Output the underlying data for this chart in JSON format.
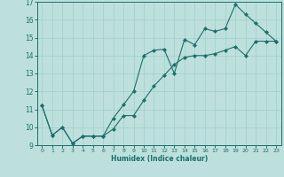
{
  "xlabel": "Humidex (Indice chaleur)",
  "xlim": [
    -0.5,
    23.5
  ],
  "ylim": [
    9,
    17
  ],
  "xticks": [
    0,
    1,
    2,
    3,
    4,
    5,
    6,
    7,
    8,
    9,
    10,
    11,
    12,
    13,
    14,
    15,
    16,
    17,
    18,
    19,
    20,
    21,
    22,
    23
  ],
  "yticks": [
    9,
    10,
    11,
    12,
    13,
    14,
    15,
    16,
    17
  ],
  "line_color": "#1e6e6a",
  "bg_color": "#bde0dc",
  "grid_color": "#9ecfcb",
  "line1_x": [
    0,
    1,
    2,
    3,
    4,
    5,
    6,
    7,
    8,
    9,
    10,
    11,
    12,
    13,
    14,
    15,
    16,
    17,
    18,
    19,
    20,
    21,
    22,
    23
  ],
  "line1_y": [
    11.2,
    9.55,
    10.0,
    9.1,
    9.5,
    9.5,
    9.5,
    10.5,
    11.25,
    12.0,
    14.0,
    14.3,
    14.35,
    13.0,
    14.9,
    14.6,
    15.5,
    15.35,
    15.5,
    16.85,
    16.3,
    15.8,
    15.3,
    14.8
  ],
  "line2_x": [
    0,
    1,
    2,
    3,
    4,
    5,
    6,
    7,
    8,
    9,
    10,
    11,
    12,
    13,
    14,
    15,
    16,
    17,
    18,
    19,
    20,
    21,
    22,
    23
  ],
  "line2_y": [
    11.2,
    9.55,
    10.0,
    9.1,
    9.5,
    9.5,
    9.5,
    9.9,
    10.65,
    10.65,
    11.5,
    12.3,
    12.9,
    13.5,
    13.9,
    14.0,
    14.0,
    14.1,
    14.3,
    14.5,
    14.0,
    14.8,
    14.8,
    14.8
  ],
  "marker": "D",
  "markersize": 2.0,
  "linewidth": 0.8
}
